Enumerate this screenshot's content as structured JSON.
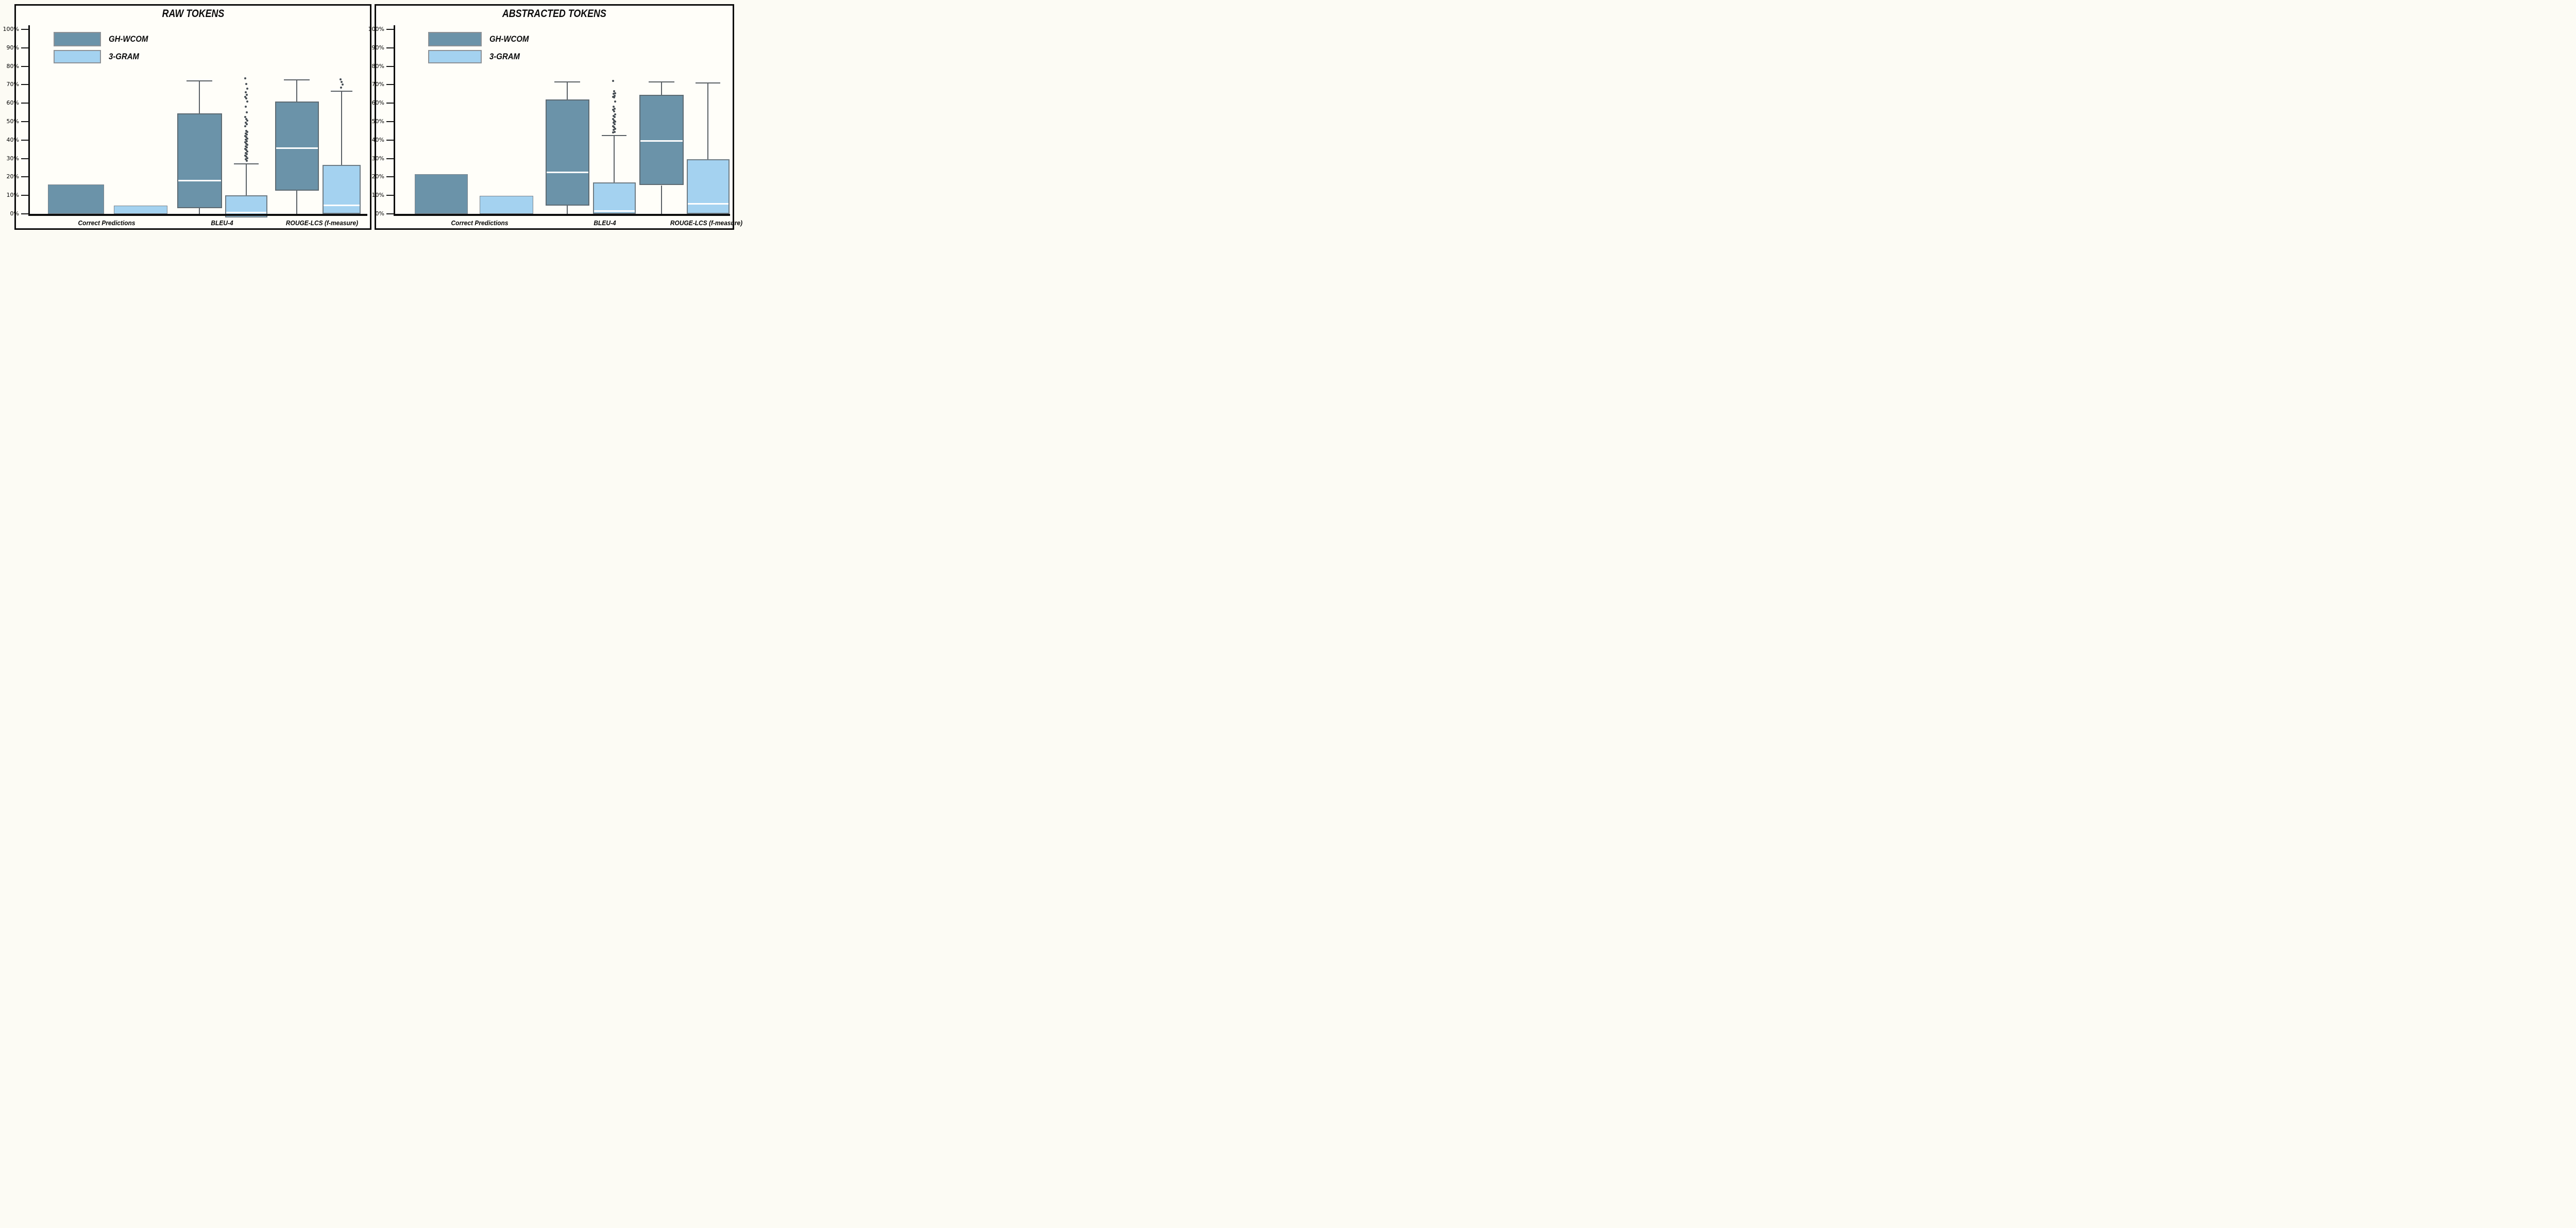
{
  "page": {
    "background": "#fcfbf4",
    "panel_background": "#fffef9"
  },
  "colors": {
    "ghwcom_fill": "#6b93a9",
    "ghwcom_border": "#5d6a72",
    "threegram_fill": "#a4d2f0",
    "threegram_border": "#6e7b83",
    "bar_border": "#7d848b",
    "whisker": "#5a6065",
    "outlier": "#474e54",
    "median_line": "#ffffff",
    "axis": "#0d0d0d"
  },
  "legend": {
    "items": [
      {
        "label": "GH-WCOM",
        "key": "ghwcom"
      },
      {
        "label": "3-GRAM",
        "key": "threegram"
      }
    ]
  },
  "chart_data": [
    {
      "type": "boxplot",
      "title": "RAW TOKENS",
      "categories": [
        "Correct Predictions",
        "BLEU-4",
        "ROUGE-LCS (f-measure)"
      ],
      "yticks": [
        "0%",
        "10%",
        "20%",
        "30%",
        "40%",
        "50%",
        "60%",
        "70%",
        "80%",
        "90%",
        "100%"
      ],
      "ylim": [
        0,
        100
      ],
      "grid": false,
      "legend_position": "top-left",
      "series": [
        {
          "name": "GH-WCOM",
          "key": "ghwcom",
          "items": [
            {
              "category": "Correct Predictions",
              "kind": "bar",
              "value": 16
            },
            {
              "category": "BLEU-4",
              "kind": "box",
              "lo": 0,
              "q1": 3,
              "median": 18,
              "q3": 54.5,
              "hi": 72,
              "outliers": []
            },
            {
              "category": "ROUGE-LCS (f-measure)",
              "kind": "box",
              "lo": 0,
              "q1": 12.5,
              "median": 35.5,
              "q3": 61,
              "hi": 72.5,
              "outliers": []
            }
          ]
        },
        {
          "name": "3-GRAM",
          "key": "threegram",
          "items": [
            {
              "category": "Correct Predictions",
              "kind": "bar",
              "value": 4.4
            },
            {
              "category": "BLEU-4",
              "kind": "box",
              "lo": null,
              "q1": -2,
              "median": 0.7,
              "q3": 10,
              "hi": 27,
              "outliers": [
                73.5,
                70.5,
                68,
                66,
                64.5,
                63.5,
                62.5,
                61,
                58,
                55,
                52.5,
                51.5,
                50.5,
                49.5,
                48.5,
                47.5,
                45,
                44.3,
                43.6,
                42.9,
                42.2,
                41.5,
                40.8,
                40.1,
                39.4,
                38.7,
                38,
                37.3,
                36.6,
                35.9,
                35.2,
                34.5,
                33.8,
                33.1,
                32.4,
                31.7,
                31,
                30.3,
                29.6,
                28.9
              ]
            },
            {
              "category": "ROUGE-LCS (f-measure)",
              "kind": "box",
              "lo": 0,
              "q1": 0,
              "median": 4.5,
              "q3": 26.5,
              "hi": 66.5,
              "outliers": [
                73,
                71.5,
                70,
                68.5
              ]
            }
          ]
        }
      ]
    },
    {
      "type": "boxplot",
      "title": "ABSTRACTED TOKENS",
      "categories": [
        "Correct Predictions",
        "BLEU-4",
        "ROUGE-LCS (f-measure)"
      ],
      "yticks": [
        "0%",
        "10%",
        "20%",
        "30%",
        "40%",
        "50%",
        "60%",
        "70%",
        "80%",
        "90%",
        "100%"
      ],
      "ylim": [
        0,
        100
      ],
      "grid": false,
      "legend_position": "top-left",
      "series": [
        {
          "name": "GH-WCOM",
          "key": "ghwcom",
          "items": [
            {
              "category": "Correct Predictions",
              "kind": "bar",
              "value": 21.5
            },
            {
              "category": "BLEU-4",
              "kind": "box",
              "lo": 0,
              "q1": 4.5,
              "median": 22.5,
              "q3": 62,
              "hi": 71.5,
              "outliers": []
            },
            {
              "category": "ROUGE-LCS (f-measure)",
              "kind": "box",
              "lo": 0,
              "q1": 15.5,
              "median": 39.5,
              "q3": 64.5,
              "hi": 71.5,
              "outliers": []
            }
          ]
        },
        {
          "name": "3-GRAM",
          "key": "threegram",
          "items": [
            {
              "category": "Correct Predictions",
              "kind": "bar",
              "value": 9.8
            },
            {
              "category": "BLEU-4",
              "kind": "box",
              "lo": 0,
              "q1": 0,
              "median": 1.5,
              "q3": 17,
              "hi": 42.5,
              "outliers": [
                72,
                66.5,
                65.5,
                65,
                64,
                63.5,
                63,
                61,
                58,
                57,
                56.5,
                55.5,
                54,
                53,
                52.5,
                51.5,
                50.5,
                50,
                49.5,
                48.5,
                47.5,
                47,
                46,
                45.5,
                44.5,
                44
              ]
            },
            {
              "category": "ROUGE-LCS (f-measure)",
              "kind": "box",
              "lo": 0,
              "q1": 0,
              "median": 5.5,
              "q3": 29.5,
              "hi": 71,
              "outliers": []
            }
          ]
        }
      ]
    }
  ]
}
